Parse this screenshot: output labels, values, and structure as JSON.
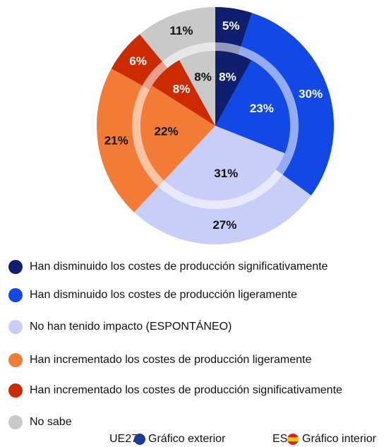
{
  "chart_data": {
    "type": "pie",
    "categories": [
      "Han disminuido los costes de producción significativamente",
      "Han disminuido los costes de producción ligeramente",
      "No han tenido impacto (ESPONTÁNEO)",
      "Han incrementado los costes de producción ligeramente",
      "Han incrementado los costes de producción significativamente",
      "No sabe"
    ],
    "colors": [
      "#0f1f6e",
      "#1148e6",
      "#c9cef8",
      "#f27c36",
      "#cc2b02",
      "#c9c9c9"
    ],
    "series": [
      {
        "name": "UE27",
        "label": "Gráfico exterior",
        "values": [
          5,
          30,
          27,
          21,
          6,
          11
        ],
        "value_labels": [
          "5%",
          "30%",
          "27%",
          "21%",
          "6%",
          "11%"
        ]
      },
      {
        "name": "ES",
        "label": "Gráfico interior",
        "values": [
          8,
          23,
          31,
          22,
          8,
          8
        ],
        "value_labels": [
          "8%",
          "23%",
          "31%",
          "22%",
          "8%",
          "8%"
        ]
      }
    ]
  }
}
